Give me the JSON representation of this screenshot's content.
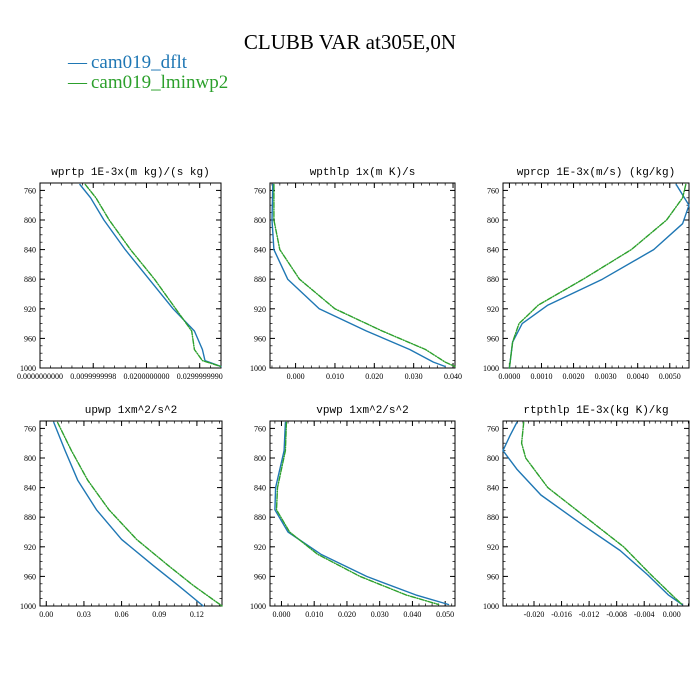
{
  "figure": {
    "title": "CLUBB VAR at305E,0N",
    "legend": [
      {
        "label": "cam019_dflt",
        "color": "#1f77b4"
      },
      {
        "label": "cam019_lminwp2",
        "color": "#2ca02c"
      }
    ]
  },
  "chart_data": [
    {
      "type": "line",
      "title": "wprtp  1E-3x(m kg)/(s kg)",
      "xlim": [
        0.0,
        0.034
      ],
      "ylim": [
        1000,
        750
      ],
      "xticks": [
        0.0,
        0.01,
        0.02,
        0.03
      ],
      "xticklabels": [
        "0.0000000000",
        "0.0099999998",
        "0.0200000000",
        "0.0299999990"
      ],
      "yticks": [
        760,
        800,
        840,
        880,
        920,
        960,
        1000
      ],
      "series": [
        {
          "name": "cam019_dflt",
          "color": "#1f77b4",
          "dashed": false,
          "points": [
            [
              0.0075,
              752
            ],
            [
              0.0095,
              770
            ],
            [
              0.012,
              800
            ],
            [
              0.016,
              840
            ],
            [
              0.0205,
              880
            ],
            [
              0.025,
              920
            ],
            [
              0.029,
              950
            ],
            [
              0.0305,
              975
            ],
            [
              0.031,
              990
            ],
            [
              0.034,
              998
            ]
          ]
        },
        {
          "name": "cam019_lminwp2",
          "color": "#2ca02c",
          "dashed": true,
          "points": [
            [
              0.0085,
              752
            ],
            [
              0.0105,
              770
            ],
            [
              0.013,
              800
            ],
            [
              0.017,
              840
            ],
            [
              0.0215,
              880
            ],
            [
              0.0255,
              920
            ],
            [
              0.0285,
              950
            ],
            [
              0.029,
              975
            ],
            [
              0.0305,
              990
            ],
            [
              0.034,
              998
            ]
          ]
        }
      ]
    },
    {
      "type": "line",
      "title": "wpthlp  1x(m K)/s",
      "xlim": [
        -0.0065,
        0.0405
      ],
      "ylim": [
        1000,
        750
      ],
      "xticks": [
        0.0,
        0.01,
        0.02,
        0.03,
        0.04
      ],
      "xticklabels": [
        "0.000",
        "0.010",
        "0.020",
        "0.030",
        "0.040"
      ],
      "yticks": [
        760,
        800,
        840,
        880,
        920,
        960,
        1000
      ],
      "series": [
        {
          "name": "cam019_dflt",
          "color": "#1f77b4",
          "dashed": false,
          "points": [
            [
              -0.0058,
              752
            ],
            [
              -0.006,
              800
            ],
            [
              -0.0055,
              840
            ],
            [
              -0.002,
              880
            ],
            [
              0.006,
              920
            ],
            [
              0.018,
              950
            ],
            [
              0.029,
              975
            ],
            [
              0.035,
              992
            ],
            [
              0.038,
              998
            ]
          ]
        },
        {
          "name": "cam019_lminwp2",
          "color": "#2ca02c",
          "dashed": true,
          "points": [
            [
              -0.0055,
              752
            ],
            [
              -0.0055,
              800
            ],
            [
              -0.004,
              840
            ],
            [
              0.001,
              880
            ],
            [
              0.01,
              920
            ],
            [
              0.022,
              950
            ],
            [
              0.033,
              975
            ],
            [
              0.038,
              992
            ],
            [
              0.0405,
              998
            ]
          ]
        }
      ]
    },
    {
      "type": "line",
      "title": "wprcp  1E-3x(m/s) (kg/kg)",
      "xlim": [
        -0.0002,
        0.0056
      ],
      "ylim": [
        1000,
        750
      ],
      "xticks": [
        0.0,
        0.001,
        0.002,
        0.003,
        0.004,
        0.005
      ],
      "xticklabels": [
        "0.0000",
        "0.0010",
        "0.0020",
        "0.0030",
        "0.0040",
        "0.0050"
      ],
      "yticks": [
        760,
        800,
        840,
        880,
        920,
        960,
        1000
      ],
      "series": [
        {
          "name": "cam019_dflt",
          "color": "#1f77b4",
          "dashed": false,
          "points": [
            [
              0.0052,
              752
            ],
            [
              0.0056,
              780
            ],
            [
              0.0054,
              805
            ],
            [
              0.0045,
              840
            ],
            [
              0.0029,
              880
            ],
            [
              0.0012,
              915
            ],
            [
              0.0004,
              940
            ],
            [
              0.0001,
              965
            ],
            [
              0.0,
              1000
            ]
          ]
        },
        {
          "name": "cam019_lminwp2",
          "color": "#2ca02c",
          "dashed": true,
          "points": [
            [
              0.0055,
              752
            ],
            [
              0.0054,
              770
            ],
            [
              0.0049,
              800
            ],
            [
              0.0038,
              840
            ],
            [
              0.0023,
              880
            ],
            [
              0.0009,
              915
            ],
            [
              0.0003,
              940
            ],
            [
              0.0001,
              965
            ],
            [
              0.0,
              1000
            ]
          ]
        }
      ]
    },
    {
      "type": "line",
      "title": "upwp  1xm^2/s^2",
      "xlim": [
        -0.005,
        0.14
      ],
      "ylim": [
        1000,
        750
      ],
      "xticks": [
        0.0,
        0.03,
        0.06,
        0.09,
        0.12
      ],
      "xticklabels": [
        "0.00",
        "0.03",
        "0.06",
        "0.09",
        "0.12"
      ],
      "yticks": [
        760,
        800,
        840,
        880,
        920,
        960,
        1000
      ],
      "series": [
        {
          "name": "cam019_dflt",
          "color": "#1f77b4",
          "dashed": false,
          "points": [
            [
              0.006,
              752
            ],
            [
              0.015,
              790
            ],
            [
              0.025,
              830
            ],
            [
              0.04,
              870
            ],
            [
              0.06,
              910
            ],
            [
              0.085,
              945
            ],
            [
              0.105,
              972
            ],
            [
              0.125,
              1000
            ]
          ]
        },
        {
          "name": "cam019_lminwp2",
          "color": "#2ca02c",
          "dashed": true,
          "points": [
            [
              0.009,
              752
            ],
            [
              0.02,
              790
            ],
            [
              0.033,
              830
            ],
            [
              0.05,
              870
            ],
            [
              0.072,
              910
            ],
            [
              0.097,
              945
            ],
            [
              0.117,
              972
            ],
            [
              0.14,
              1000
            ]
          ]
        }
      ]
    },
    {
      "type": "line",
      "title": "vpwp  1xm^2/s^2",
      "xlim": [
        -0.0035,
        0.053
      ],
      "ylim": [
        1000,
        750
      ],
      "xticks": [
        0.0,
        0.01,
        0.02,
        0.03,
        0.04,
        0.05
      ],
      "xticklabels": [
        "0.000",
        "0.010",
        "0.020",
        "0.030",
        "0.040",
        "0.050"
      ],
      "yticks": [
        760,
        800,
        840,
        880,
        920,
        960,
        1000
      ],
      "series": [
        {
          "name": "cam019_dflt",
          "color": "#1f77b4",
          "dashed": false,
          "points": [
            [
              0.0012,
              752
            ],
            [
              0.0008,
              790
            ],
            [
              -0.0018,
              840
            ],
            [
              -0.002,
              870
            ],
            [
              0.002,
              900
            ],
            [
              0.012,
              930
            ],
            [
              0.026,
              960
            ],
            [
              0.041,
              985
            ],
            [
              0.051,
              998
            ]
          ]
        },
        {
          "name": "cam019_lminwp2",
          "color": "#2ca02c",
          "dashed": true,
          "points": [
            [
              0.0015,
              752
            ],
            [
              0.0012,
              790
            ],
            [
              -0.0012,
              840
            ],
            [
              -0.0015,
              870
            ],
            [
              0.0025,
              900
            ],
            [
              0.011,
              930
            ],
            [
              0.024,
              960
            ],
            [
              0.038,
              985
            ],
            [
              0.048,
              998
            ]
          ]
        }
      ]
    },
    {
      "type": "line",
      "title": "rtpthlp  1E-3x(kg K)/kg",
      "xlim": [
        -0.0245,
        0.0025
      ],
      "ylim": [
        1000,
        750
      ],
      "xticks": [
        -0.02,
        -0.016,
        -0.012,
        -0.008,
        -0.004,
        0.0
      ],
      "xticklabels": [
        "-0.020",
        "-0.016",
        "-0.012",
        "-0.008",
        "-0.004",
        "0.000"
      ],
      "yticks": [
        760,
        800,
        840,
        880,
        920,
        960,
        1000
      ],
      "series": [
        {
          "name": "cam019_dflt",
          "color": "#1f77b4",
          "dashed": false,
          "points": [
            [
              -0.0225,
              752
            ],
            [
              -0.0235,
              770
            ],
            [
              -0.0245,
              790
            ],
            [
              -0.0225,
              815
            ],
            [
              -0.019,
              850
            ],
            [
              -0.013,
              890
            ],
            [
              -0.0075,
              925
            ],
            [
              -0.0035,
              958
            ],
            [
              -0.0005,
              985
            ],
            [
              0.0015,
              998
            ]
          ]
        },
        {
          "name": "cam019_lminwp2",
          "color": "#2ca02c",
          "dashed": true,
          "points": [
            [
              -0.0215,
              752
            ],
            [
              -0.0218,
              780
            ],
            [
              -0.0212,
              800
            ],
            [
              -0.018,
              840
            ],
            [
              -0.0125,
              880
            ],
            [
              -0.007,
              920
            ],
            [
              -0.003,
              958
            ],
            [
              0.0,
              985
            ],
            [
              0.0015,
              998
            ]
          ]
        }
      ]
    }
  ]
}
